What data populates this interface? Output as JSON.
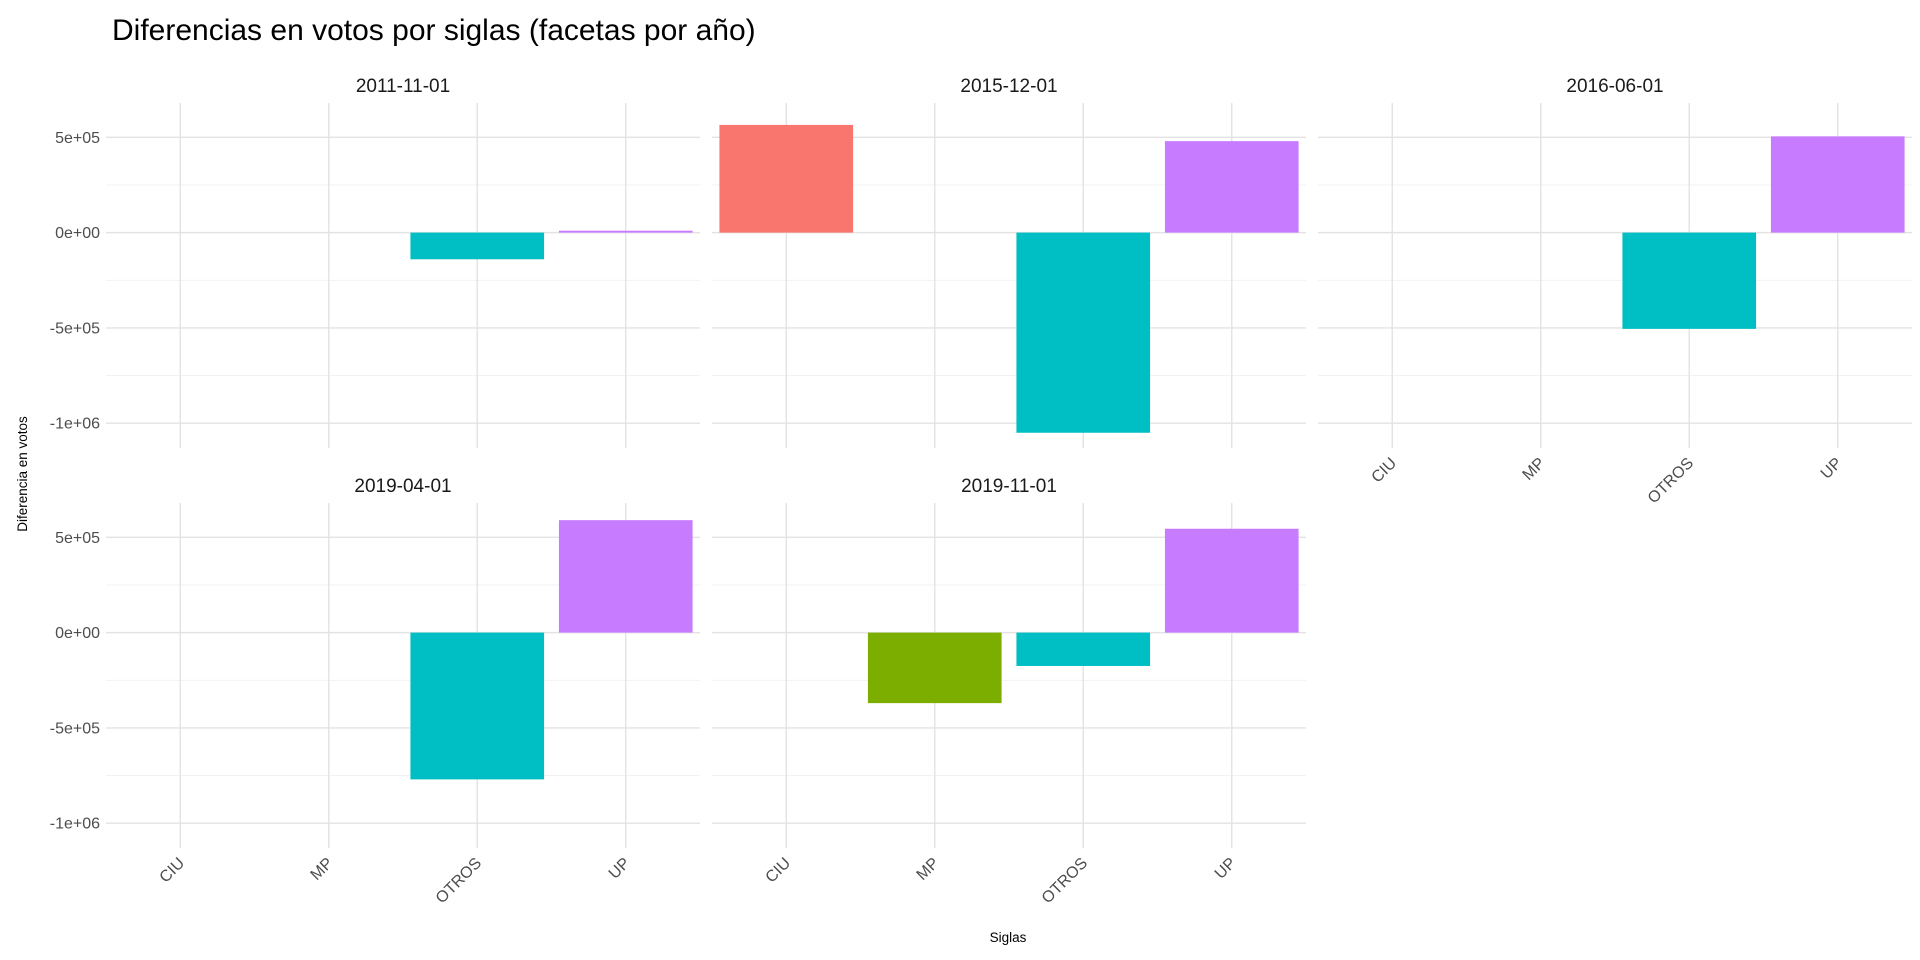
{
  "chart_data": {
    "type": "bar",
    "title": "Diferencias en votos por siglas (facetas por año)",
    "xlabel": "Siglas",
    "ylabel": "Diferencia en votos",
    "categories": [
      "CIU",
      "MP",
      "OTROS",
      "UP"
    ],
    "ylim": [
      -1130000,
      680000
    ],
    "yticks": [
      {
        "value": 500000,
        "label": "5e+05"
      },
      {
        "value": 0,
        "label": "0e+00"
      },
      {
        "value": -500000,
        "label": "-5e+05"
      },
      {
        "value": -1000000,
        "label": "-1e+06"
      }
    ],
    "grid": true,
    "legend": "none",
    "colors": {
      "CIU": "#F8766D",
      "MP": "#7CAE00",
      "OTROS": "#00BFC4",
      "UP": "#C77CFF"
    },
    "facets": [
      {
        "label": "2011-11-01",
        "values": [
          null,
          null,
          -140000,
          10000
        ]
      },
      {
        "label": "2015-12-01",
        "values": [
          565000,
          null,
          -1050000,
          480000
        ]
      },
      {
        "label": "2016-06-01",
        "values": [
          null,
          null,
          -505000,
          505000
        ]
      },
      {
        "label": "2019-04-01",
        "values": [
          null,
          null,
          -770000,
          590000
        ]
      },
      {
        "label": "2019-11-01",
        "values": [
          null,
          -370000,
          -175000,
          545000
        ]
      }
    ]
  }
}
